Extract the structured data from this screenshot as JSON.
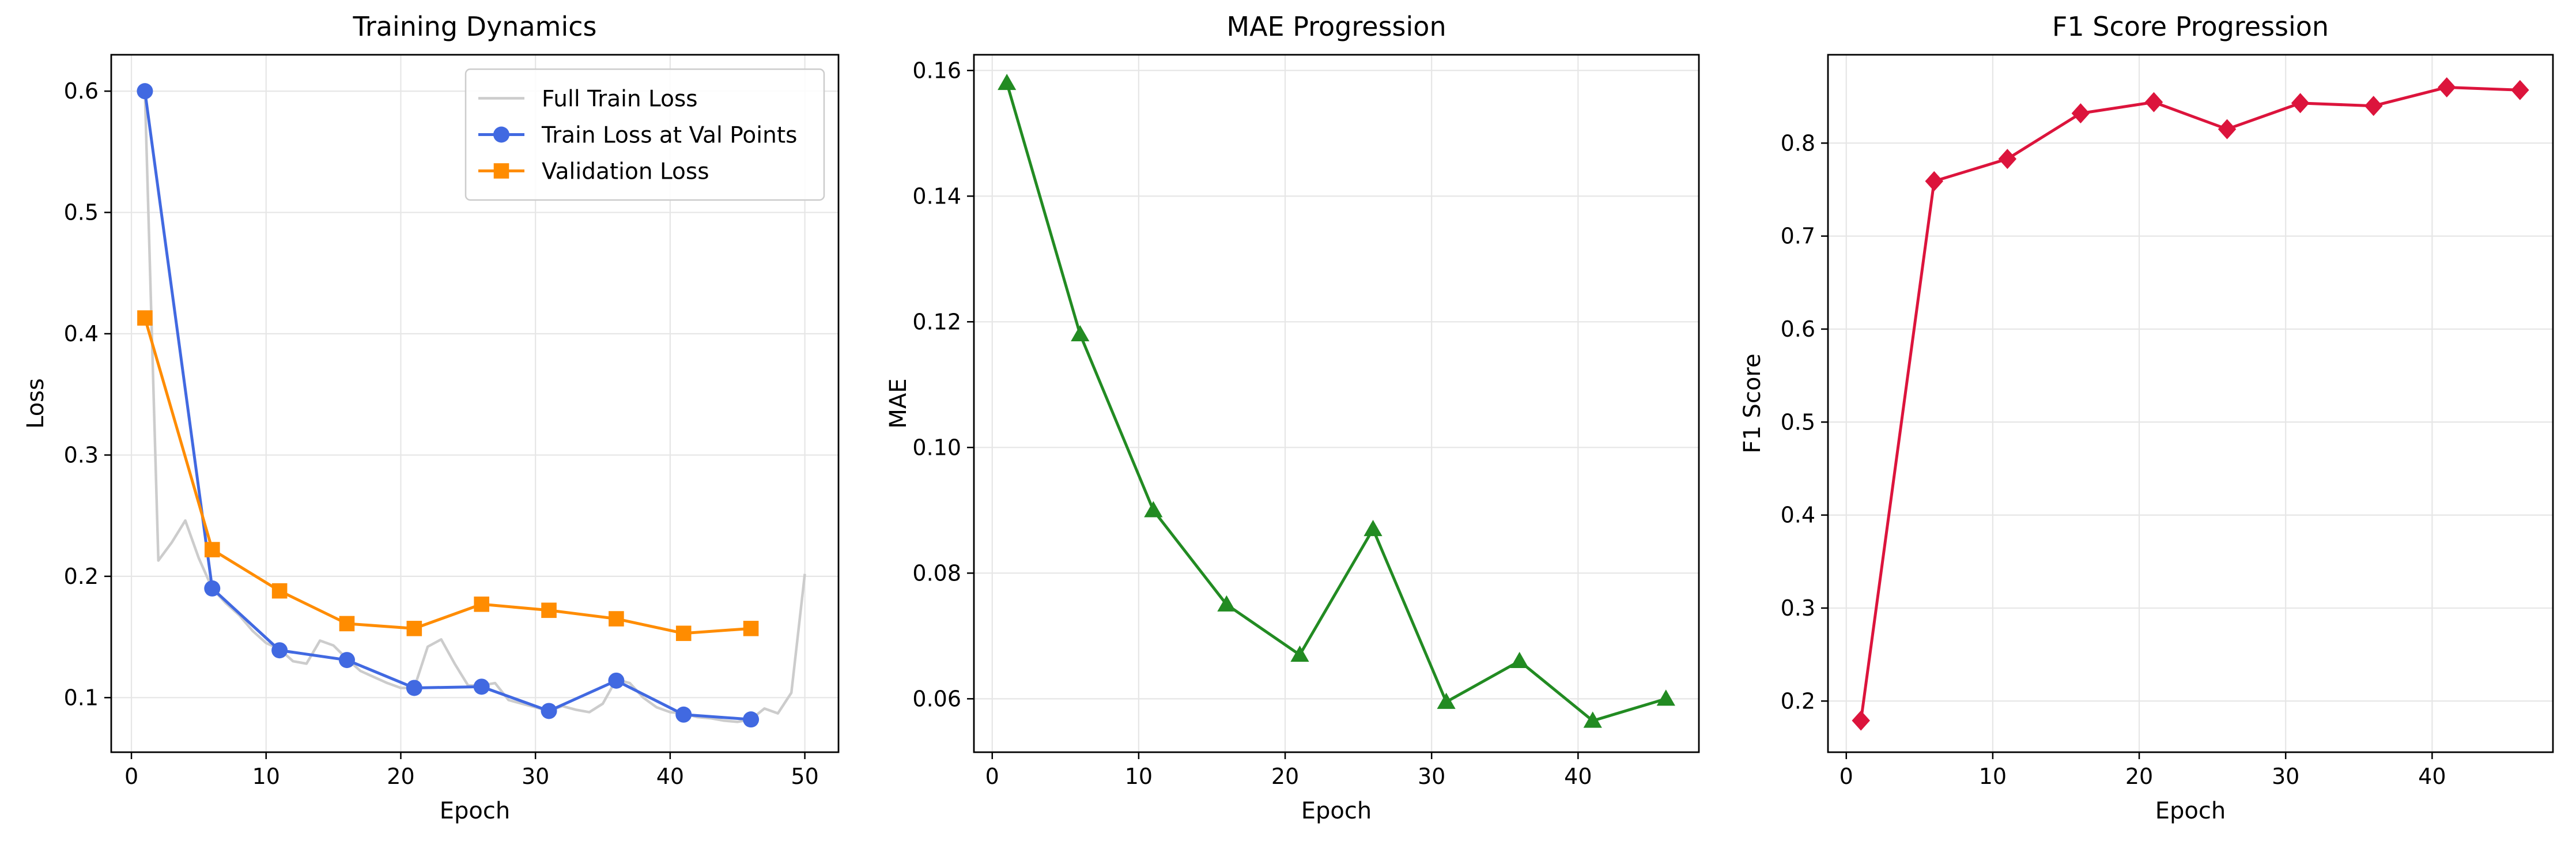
{
  "chart_data": [
    {
      "type": "line",
      "title": "Training Dynamics",
      "xlabel": "Epoch",
      "ylabel": "Loss",
      "xlim": [
        -1.5,
        52.5
      ],
      "ylim": [
        0.055,
        0.63
      ],
      "xticks": [
        0,
        10,
        20,
        30,
        40,
        50
      ],
      "yticks": [
        0.1,
        0.2,
        0.3,
        0.4,
        0.5,
        0.6
      ],
      "ytick_labels": [
        "0.1",
        "0.2",
        "0.3",
        "0.4",
        "0.5",
        "0.6"
      ],
      "grid": true,
      "legend": "top-right",
      "series": [
        {
          "name": "Full Train Loss",
          "color": "#cccccc",
          "marker": "none",
          "x": [
            1,
            2,
            3,
            4,
            5,
            6,
            7,
            8,
            9,
            10,
            11,
            12,
            13,
            14,
            15,
            16,
            17,
            18,
            19,
            20,
            21,
            22,
            23,
            24,
            25,
            26,
            27,
            28,
            29,
            30,
            31,
            32,
            33,
            34,
            35,
            36,
            37,
            38,
            39,
            40,
            41,
            42,
            43,
            44,
            45,
            46,
            47,
            48,
            49,
            50
          ],
          "y": [
            0.6,
            0.213,
            0.228,
            0.246,
            0.215,
            0.19,
            0.178,
            0.168,
            0.155,
            0.145,
            0.14,
            0.13,
            0.128,
            0.147,
            0.143,
            0.132,
            0.122,
            0.117,
            0.112,
            0.108,
            0.108,
            0.142,
            0.148,
            0.128,
            0.11,
            0.11,
            0.112,
            0.098,
            0.095,
            0.092,
            0.089,
            0.093,
            0.09,
            0.088,
            0.095,
            0.115,
            0.112,
            0.1,
            0.092,
            0.088,
            0.087,
            0.084,
            0.083,
            0.081,
            0.08,
            0.082,
            0.091,
            0.087,
            0.104,
            0.202
          ]
        },
        {
          "name": "Train Loss at Val Points",
          "color": "#4169e1",
          "marker": "circle",
          "x": [
            1,
            6,
            11,
            16,
            21,
            26,
            31,
            36,
            41,
            46
          ],
          "y": [
            0.6,
            0.19,
            0.139,
            0.131,
            0.108,
            0.109,
            0.089,
            0.114,
            0.086,
            0.082
          ]
        },
        {
          "name": "Validation Loss",
          "color": "#ff8c00",
          "marker": "square",
          "x": [
            1,
            6,
            11,
            16,
            21,
            26,
            31,
            36,
            41,
            46
          ],
          "y": [
            0.413,
            0.222,
            0.188,
            0.161,
            0.157,
            0.177,
            0.172,
            0.165,
            0.153,
            0.157
          ]
        }
      ]
    },
    {
      "type": "line",
      "title": "MAE Progression",
      "xlabel": "Epoch",
      "ylabel": "MAE",
      "xlim": [
        -1.25,
        48.25
      ],
      "ylim": [
        0.0515,
        0.1625
      ],
      "xticks": [
        0,
        10,
        20,
        30,
        40
      ],
      "yticks": [
        0.06,
        0.08,
        0.1,
        0.12,
        0.14,
        0.16
      ],
      "ytick_labels": [
        "0.06",
        "0.08",
        "0.10",
        "0.12",
        "0.14",
        "0.16"
      ],
      "grid": true,
      "legend": "none",
      "series": [
        {
          "color": "#228b22",
          "marker": "triangle",
          "x": [
            1,
            6,
            11,
            16,
            21,
            26,
            31,
            36,
            41,
            46
          ],
          "y": [
            0.158,
            0.118,
            0.09,
            0.075,
            0.067,
            0.087,
            0.0595,
            0.066,
            0.0565,
            0.06
          ]
        }
      ]
    },
    {
      "type": "line",
      "title": "F1 Score Progression",
      "xlabel": "Epoch",
      "ylabel": "F1 Score",
      "xlim": [
        -1.25,
        48.25
      ],
      "ylim": [
        0.145,
        0.895
      ],
      "xticks": [
        0,
        10,
        20,
        30,
        40
      ],
      "yticks": [
        0.2,
        0.3,
        0.4,
        0.5,
        0.6,
        0.7,
        0.8
      ],
      "ytick_labels": [
        "0.2",
        "0.3",
        "0.4",
        "0.5",
        "0.6",
        "0.7",
        "0.8"
      ],
      "grid": true,
      "legend": "none",
      "series": [
        {
          "color": "#dc143c",
          "marker": "diamond",
          "x": [
            1,
            6,
            11,
            16,
            21,
            26,
            31,
            36,
            41,
            46
          ],
          "y": [
            0.179,
            0.759,
            0.783,
            0.832,
            0.844,
            0.815,
            0.843,
            0.84,
            0.86,
            0.857
          ]
        }
      ]
    }
  ]
}
